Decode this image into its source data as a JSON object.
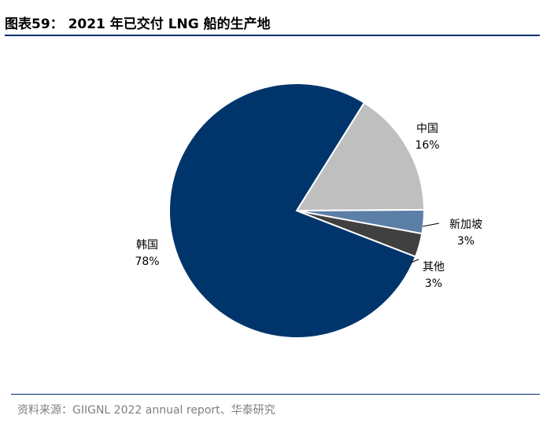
{
  "header": {
    "title": "图表59： 2021 年已交付 LNG 船的生产地"
  },
  "chart_data": {
    "type": "pie",
    "title": "2021 年已交付 LNG 船的生产地",
    "slices": [
      {
        "label": "中国",
        "value": 16,
        "value_label": "16%",
        "color": "#bfbfbf"
      },
      {
        "label": "新加坡",
        "value": 3,
        "value_label": "3%",
        "color": "#5b7fa6"
      },
      {
        "label": "其他",
        "value": 3,
        "value_label": "3%",
        "color": "#404040"
      },
      {
        "label": "韩国",
        "value": 78,
        "value_label": "78%",
        "color": "#00356b"
      }
    ]
  },
  "footer": {
    "source": "资料来源：GIIGNL 2022 annual report、华泰研究"
  }
}
